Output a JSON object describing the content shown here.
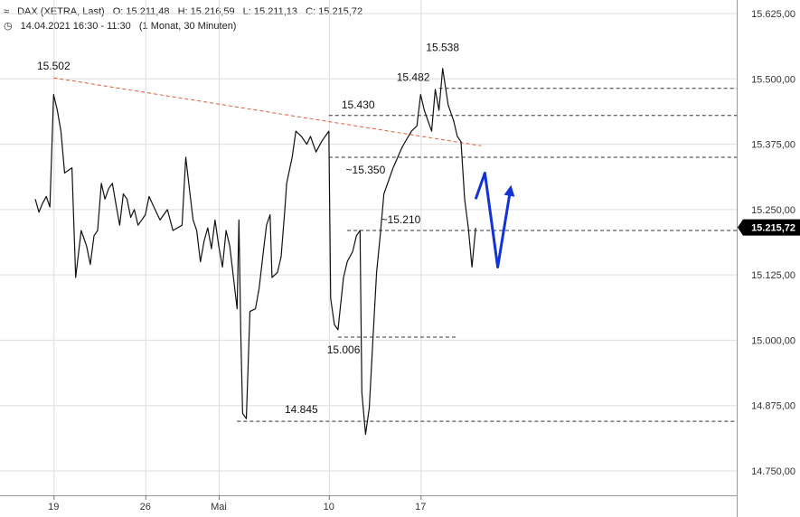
{
  "header": {
    "symbol": "DAX (XETRA, Last)",
    "open": "O: 15.211,48",
    "high": "H: 15.216,59",
    "low": "L: 15.211,13",
    "close": "C: 15.215,72",
    "timestamp": "14.04.2021 16:30 - 11:30",
    "period": "(1 Monat, 30 Minuten)"
  },
  "chart_data": {
    "type": "line",
    "instrument": "DAX (XETRA, Last)",
    "ylim": [
      14700,
      15650
    ],
    "y_ticks": [
      14750,
      14875,
      15000,
      15125,
      15250,
      15375,
      15500,
      15625
    ],
    "y_tick_labels": [
      "14.750,00",
      "14.875,00",
      "15.000,00",
      "15.125,00",
      "15.250,00",
      "15.375,00",
      "15.500,00",
      "15.625,00"
    ],
    "x_tick_labels": [
      {
        "label": "19",
        "day": 1
      },
      {
        "label": "26",
        "day": 6
      },
      {
        "label": "Mai",
        "day": 10
      },
      {
        "label": "10",
        "day": 16
      },
      {
        "label": "17",
        "day": 21
      }
    ],
    "days_visible": 27,
    "current_price": 15215.72,
    "current_price_label": "15.215,72",
    "price_path": [
      [
        0.0,
        15270
      ],
      [
        0.2,
        15245
      ],
      [
        0.4,
        15262
      ],
      [
        0.6,
        15275
      ],
      [
        0.8,
        15255
      ],
      [
        1.0,
        15470
      ],
      [
        1.2,
        15440
      ],
      [
        1.4,
        15400
      ],
      [
        1.6,
        15320
      ],
      [
        2.0,
        15330
      ],
      [
        2.2,
        15120
      ],
      [
        2.5,
        15210
      ],
      [
        2.8,
        15180
      ],
      [
        3.0,
        15145
      ],
      [
        3.2,
        15200
      ],
      [
        3.4,
        15210
      ],
      [
        3.6,
        15300
      ],
      [
        3.8,
        15270
      ],
      [
        4.0,
        15290
      ],
      [
        4.2,
        15300
      ],
      [
        4.4,
        15260
      ],
      [
        4.6,
        15220
      ],
      [
        4.8,
        15280
      ],
      [
        5.0,
        15270
      ],
      [
        5.2,
        15235
      ],
      [
        5.4,
        15250
      ],
      [
        5.6,
        15220
      ],
      [
        6.0,
        15240
      ],
      [
        6.2,
        15275
      ],
      [
        6.4,
        15260
      ],
      [
        6.8,
        15230
      ],
      [
        7.0,
        15240
      ],
      [
        7.2,
        15250
      ],
      [
        7.5,
        15210
      ],
      [
        8.0,
        15220
      ],
      [
        8.2,
        15350
      ],
      [
        8.4,
        15290
      ],
      [
        8.6,
        15230
      ],
      [
        8.8,
        15210
      ],
      [
        9.0,
        15150
      ],
      [
        9.2,
        15190
      ],
      [
        9.4,
        15215
      ],
      [
        9.6,
        15175
      ],
      [
        9.8,
        15230
      ],
      [
        10.0,
        15180
      ],
      [
        10.2,
        15140
      ],
      [
        10.4,
        15210
      ],
      [
        10.6,
        15180
      ],
      [
        11.0,
        15060
      ],
      [
        11.1,
        15230
      ],
      [
        11.2,
        15010
      ],
      [
        11.3,
        14860
      ],
      [
        11.5,
        14850
      ],
      [
        11.7,
        15055
      ],
      [
        12.0,
        15060
      ],
      [
        12.2,
        15100
      ],
      [
        12.4,
        15160
      ],
      [
        12.6,
        15220
      ],
      [
        12.8,
        15240
      ],
      [
        12.9,
        15120
      ],
      [
        13.2,
        15130
      ],
      [
        13.4,
        15160
      ],
      [
        13.6,
        15250
      ],
      [
        13.7,
        15300
      ],
      [
        14.0,
        15350
      ],
      [
        14.2,
        15400
      ],
      [
        14.5,
        15390
      ],
      [
        14.8,
        15375
      ],
      [
        15.0,
        15390
      ],
      [
        15.3,
        15360
      ],
      [
        15.6,
        15380
      ],
      [
        15.8,
        15390
      ],
      [
        16.0,
        15400
      ],
      [
        16.1,
        15080
      ],
      [
        16.3,
        15030
      ],
      [
        16.5,
        15020
      ],
      [
        16.8,
        15120
      ],
      [
        17.0,
        15150
      ],
      [
        17.3,
        15170
      ],
      [
        17.5,
        15200
      ],
      [
        17.7,
        15210
      ],
      [
        17.8,
        14900
      ],
      [
        18.0,
        14820
      ],
      [
        18.2,
        14870
      ],
      [
        18.4,
        15000
      ],
      [
        18.6,
        15130
      ],
      [
        18.8,
        15200
      ],
      [
        19.0,
        15280
      ],
      [
        19.5,
        15330
      ],
      [
        20.0,
        15370
      ],
      [
        20.5,
        15400
      ],
      [
        20.8,
        15410
      ],
      [
        21.0,
        15470
      ],
      [
        21.2,
        15440
      ],
      [
        21.4,
        15420
      ],
      [
        21.6,
        15400
      ],
      [
        21.8,
        15480
      ],
      [
        22.0,
        15440
      ],
      [
        22.2,
        15520
      ],
      [
        22.5,
        15450
      ],
      [
        22.8,
        15420
      ],
      [
        23.0,
        15390
      ],
      [
        23.2,
        15380
      ],
      [
        23.4,
        15270
      ],
      [
        23.6,
        15215
      ],
      [
        23.8,
        15140
      ],
      [
        24.0,
        15215
      ]
    ],
    "trendline": {
      "from": [
        1.0,
        15502
      ],
      "to": [
        24.3,
        15372
      ]
    },
    "levels": [
      {
        "value": 15482,
        "from_day": 22.0
      },
      {
        "value": 15430,
        "from_day": 16.0
      },
      {
        "value": 15350,
        "from_day": 16.0
      },
      {
        "value": 15210,
        "from_day": 17.0
      },
      {
        "value": 15006,
        "from_day": 16.5,
        "to_day": 23.0
      },
      {
        "value": 14845,
        "from_day": 11.0
      }
    ],
    "annotations": [
      {
        "text": "15.502",
        "day": 1.0,
        "value": 15502,
        "anchor": "above"
      },
      {
        "text": "15.538",
        "day": 22.2,
        "value": 15538,
        "anchor": "above"
      },
      {
        "text": "15.482",
        "day": 21.5,
        "value": 15482,
        "anchor": "above-left"
      },
      {
        "text": "15.430",
        "day": 18.5,
        "value": 15430,
        "anchor": "above-left"
      },
      {
        "text": "~15.350",
        "day": 18.0,
        "value": 15350,
        "anchor": "below"
      },
      {
        "text": "~15.210",
        "day": 21.0,
        "value": 15210,
        "anchor": "above-left"
      },
      {
        "text": "15.006",
        "day": 16.8,
        "value": 15006,
        "anchor": "below"
      },
      {
        "text": "14.845",
        "day": 14.5,
        "value": 14845,
        "anchor": "above"
      }
    ],
    "forecast_arrow": [
      [
        24.0,
        15270
      ],
      [
        24.5,
        15320
      ],
      [
        25.2,
        15140
      ],
      [
        25.9,
        15290
      ]
    ],
    "grid": true,
    "legend": "none",
    "colors": {
      "price": "#111111",
      "trendline": "#e05a3a",
      "level": "#333333",
      "forecast": "#1433d6",
      "grid": "#dddddd",
      "current_badge": "#000000"
    }
  }
}
